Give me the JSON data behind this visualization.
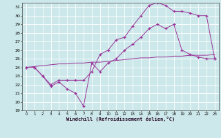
{
  "bg_color": "#cce8ea",
  "line_color": "#993399",
  "xmin": 0,
  "xmax": 23,
  "ymin": 19,
  "ymax": 31,
  "line1_x": [
    0,
    1,
    2,
    3,
    4,
    5,
    6,
    7,
    8,
    9,
    10,
    11,
    12,
    13,
    14,
    15,
    16,
    17,
    18,
    19,
    20,
    21,
    22,
    23
  ],
  "line1_y": [
    24.0,
    24.0,
    23.0,
    21.8,
    22.3,
    21.5,
    21.0,
    19.5,
    24.5,
    23.5,
    24.5,
    25.0,
    26.0,
    26.7,
    27.5,
    28.5,
    29.0,
    28.5,
    29.0,
    26.0,
    25.5,
    25.2,
    25.0,
    25.0
  ],
  "line2_x": [
    0,
    1,
    2,
    3,
    4,
    5,
    6,
    7,
    8,
    9,
    10,
    11,
    12,
    13,
    14,
    15,
    16,
    17,
    18,
    19,
    20,
    21,
    22,
    23
  ],
  "line2_y": [
    24.0,
    24.0,
    23.0,
    22.0,
    22.5,
    22.5,
    22.5,
    22.5,
    23.5,
    25.5,
    26.0,
    27.2,
    27.5,
    28.8,
    30.0,
    31.2,
    31.5,
    31.2,
    30.5,
    30.5,
    30.3,
    30.0,
    30.0,
    25.0
  ],
  "line3_x": [
    0,
    1,
    2,
    3,
    4,
    5,
    6,
    7,
    8,
    9,
    10,
    11,
    12,
    13,
    14,
    15,
    16,
    17,
    18,
    19,
    20,
    21,
    22,
    23
  ],
  "line3_y": [
    24.0,
    24.1,
    24.2,
    24.3,
    24.4,
    24.4,
    24.5,
    24.5,
    24.6,
    24.6,
    24.7,
    24.8,
    24.9,
    25.0,
    25.1,
    25.1,
    25.2,
    25.2,
    25.3,
    25.3,
    25.4,
    25.4,
    25.4,
    25.5
  ],
  "xlabel": "Windchill (Refroidissement éolien,°C)"
}
